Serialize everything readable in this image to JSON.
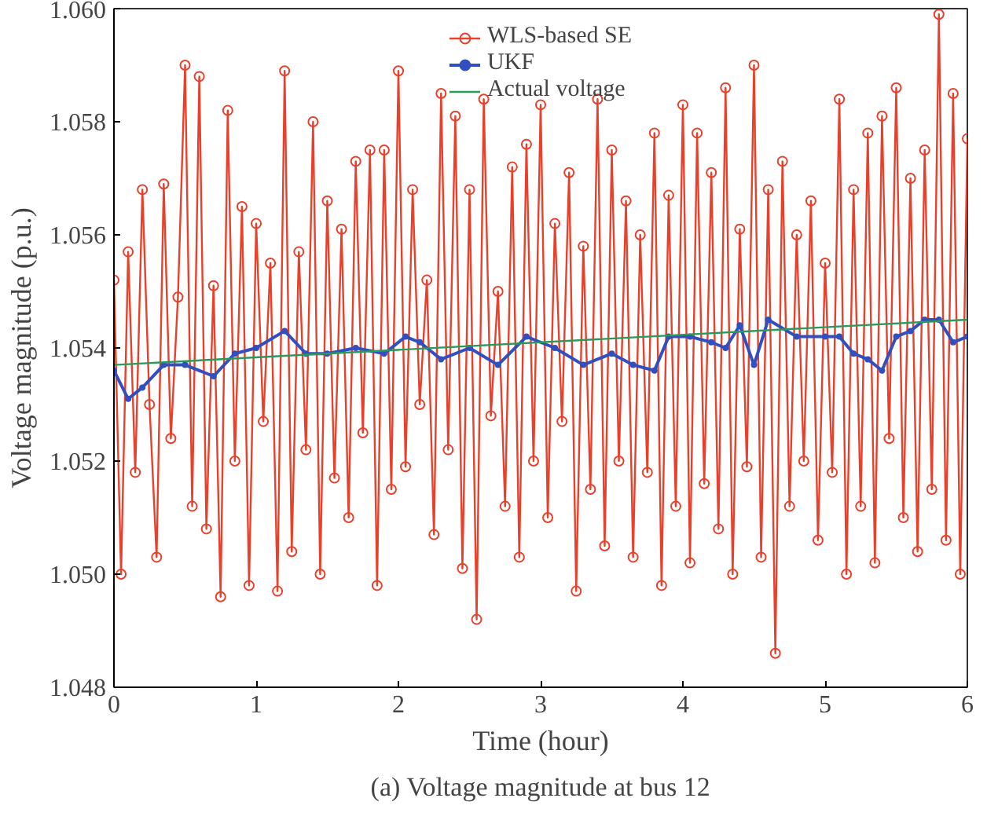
{
  "chart_data": {
    "type": "line",
    "title": "(a) Voltage magnitude at bus 12",
    "xlabel": "Time (hour)",
    "ylabel": "Voltage magnitude (p.u.)",
    "xlim": [
      0,
      6
    ],
    "ylim": [
      1.048,
      1.06
    ],
    "xticks": [
      0,
      1,
      2,
      3,
      4,
      5,
      6
    ],
    "yticks": [
      {
        "value": 1.048,
        "label": "1.048"
      },
      {
        "value": 1.05,
        "label": "1.050"
      },
      {
        "value": 1.052,
        "label": "1.052"
      },
      {
        "value": 1.054,
        "label": "1.054"
      },
      {
        "value": 1.056,
        "label": "1.056"
      },
      {
        "value": 1.058,
        "label": "1.058"
      },
      {
        "value": 1.06,
        "label": "1.060"
      }
    ],
    "grid": false,
    "legend": "top",
    "series": [
      {
        "name": "WLS-based SE",
        "color": "#e8402a",
        "marker": "circle",
        "x": [
          0,
          0.05,
          0.1,
          0.15,
          0.2,
          0.25,
          0.3,
          0.35,
          0.4,
          0.45,
          0.5,
          0.55,
          0.6,
          0.65,
          0.7,
          0.75,
          0.8,
          0.85,
          0.9,
          0.95,
          1,
          1.05,
          1.1,
          1.15,
          1.2,
          1.25,
          1.3,
          1.35,
          1.4,
          1.45,
          1.5,
          1.55,
          1.6,
          1.65,
          1.7,
          1.75,
          1.8,
          1.85,
          1.9,
          1.95,
          2,
          2.05,
          2.1,
          2.15,
          2.2,
          2.25,
          2.3,
          2.35,
          2.4,
          2.45,
          2.5,
          2.55,
          2.6,
          2.65,
          2.7,
          2.75,
          2.8,
          2.85,
          2.9,
          2.95,
          3,
          3.05,
          3.1,
          3.15,
          3.2,
          3.25,
          3.3,
          3.35,
          3.4,
          3.45,
          3.5,
          3.55,
          3.6,
          3.65,
          3.7,
          3.75,
          3.8,
          3.85,
          3.9,
          3.95,
          4,
          4.05,
          4.1,
          4.15,
          4.2,
          4.25,
          4.3,
          4.35,
          4.4,
          4.45,
          4.5,
          4.55,
          4.6,
          4.65,
          4.7,
          4.75,
          4.8,
          4.85,
          4.9,
          4.95,
          5,
          5.05,
          5.1,
          5.15,
          5.2,
          5.25,
          5.3,
          5.35,
          5.4,
          5.45,
          5.5,
          5.55,
          5.6,
          5.65,
          5.7,
          5.75,
          5.8,
          5.85,
          5.9,
          5.95,
          6
        ],
        "values": [
          1.0552,
          1.05,
          1.0557,
          1.0518,
          1.0568,
          1.053,
          1.0503,
          1.0569,
          1.0524,
          1.0549,
          1.059,
          1.0512,
          1.0588,
          1.0508,
          1.0551,
          1.0496,
          1.0582,
          1.052,
          1.0565,
          1.0498,
          1.0562,
          1.0527,
          1.0555,
          1.0497,
          1.0589,
          1.0504,
          1.0557,
          1.0522,
          1.058,
          1.05,
          1.0566,
          1.0517,
          1.0561,
          1.051,
          1.0573,
          1.0525,
          1.0575,
          1.0498,
          1.0575,
          1.0515,
          1.0589,
          1.0519,
          1.0568,
          1.053,
          1.0552,
          1.0507,
          1.0585,
          1.0522,
          1.0581,
          1.0501,
          1.0568,
          1.0492,
          1.0584,
          1.0528,
          1.055,
          1.0512,
          1.0572,
          1.0503,
          1.0576,
          1.052,
          1.0583,
          1.051,
          1.0562,
          1.0527,
          1.0571,
          1.0497,
          1.0558,
          1.0515,
          1.0584,
          1.0505,
          1.0575,
          1.052,
          1.0566,
          1.0503,
          1.056,
          1.0518,
          1.0578,
          1.0498,
          1.0567,
          1.0512,
          1.0583,
          1.0502,
          1.0578,
          1.0516,
          1.0571,
          1.0508,
          1.0586,
          1.05,
          1.0561,
          1.0519,
          1.059,
          1.0503,
          1.0568,
          1.0486,
          1.0573,
          1.0512,
          1.056,
          1.052,
          1.0566,
          1.0506,
          1.0555,
          1.0518,
          1.0584,
          1.05,
          1.0568,
          1.0512,
          1.0578,
          1.0502,
          1.0581,
          1.0524,
          1.0586,
          1.051,
          1.057,
          1.0504,
          1.0575,
          1.0515,
          1.0599,
          1.0506,
          1.0585,
          1.05,
          1.0577
        ]
      },
      {
        "name": "UKF",
        "color": "#3050c0",
        "marker": "circle",
        "x": [
          0,
          0.1,
          0.2,
          0.35,
          0.5,
          0.7,
          0.85,
          1,
          1.2,
          1.35,
          1.5,
          1.7,
          1.9,
          2.05,
          2.15,
          2.3,
          2.5,
          2.7,
          2.9,
          3.1,
          3.3,
          3.5,
          3.65,
          3.8,
          3.9,
          4.05,
          4.2,
          4.3,
          4.4,
          4.5,
          4.6,
          4.8,
          5,
          5.1,
          5.2,
          5.3,
          5.4,
          5.5,
          5.6,
          5.7,
          5.8,
          5.9,
          6
        ],
        "values": [
          1.0536,
          1.0531,
          1.0533,
          1.0537,
          1.0537,
          1.0535,
          1.0539,
          1.054,
          1.0543,
          1.0539,
          1.0539,
          1.054,
          1.0539,
          1.0542,
          1.0541,
          1.0538,
          1.054,
          1.0537,
          1.0542,
          1.054,
          1.0537,
          1.0539,
          1.0537,
          1.0536,
          1.0542,
          1.0542,
          1.0541,
          1.054,
          1.0544,
          1.0537,
          1.0545,
          1.0542,
          1.0542,
          1.0542,
          1.0539,
          1.0538,
          1.0536,
          1.0542,
          1.0543,
          1.0545,
          1.0545,
          1.0541,
          1.0542
        ]
      },
      {
        "name": "Actual voltage",
        "color": "#2a9a5a",
        "marker": "none",
        "x": [
          0,
          6
        ],
        "values": [
          1.0537,
          1.0545
        ]
      }
    ]
  }
}
